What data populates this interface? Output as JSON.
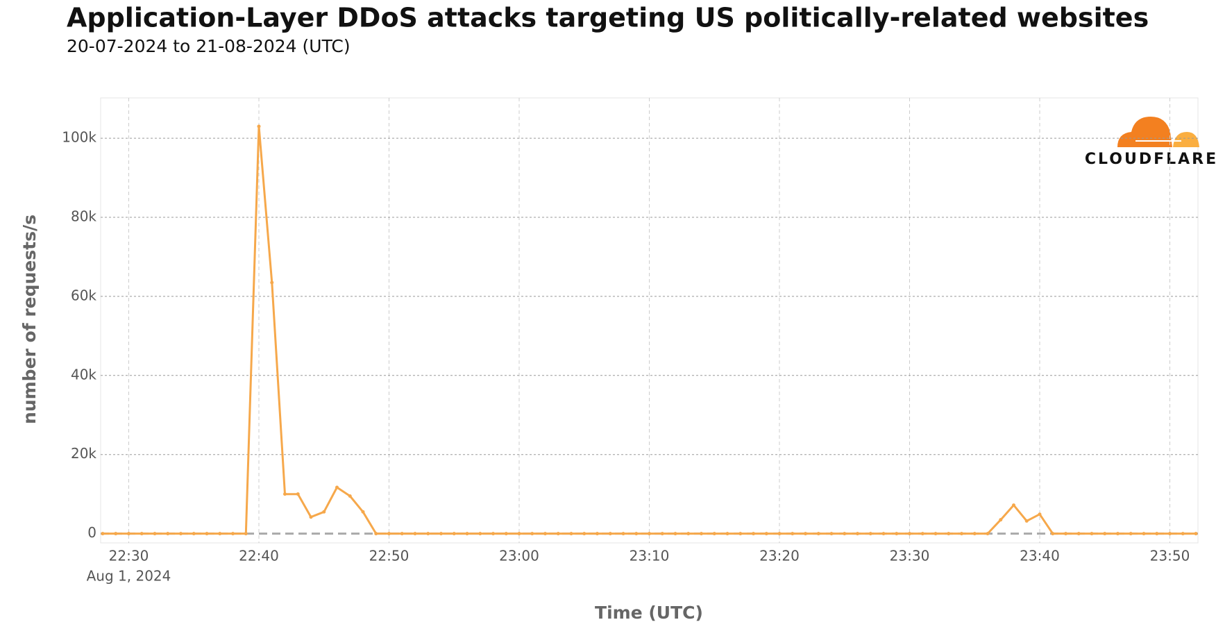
{
  "chart_data": {
    "type": "line",
    "title": "Application-Layer DDoS attacks targeting US politically-related websites",
    "subtitle": "20-07-2024 to 21-08-2024 (UTC)",
    "x_label": "Time (UTC)",
    "y_label": "number of requests/s",
    "date_label": "Aug 1, 2024",
    "logo": "CLOUDFLARE",
    "x": [
      "22:28",
      "22:29",
      "22:30",
      "22:31",
      "22:32",
      "22:33",
      "22:34",
      "22:35",
      "22:36",
      "22:37",
      "22:38",
      "22:39",
      "22:40",
      "22:41",
      "22:42",
      "22:43",
      "22:44",
      "22:45",
      "22:46",
      "22:47",
      "22:48",
      "22:49",
      "22:50",
      "22:51",
      "22:52",
      "22:53",
      "22:54",
      "22:55",
      "22:56",
      "22:57",
      "22:58",
      "22:59",
      "23:00",
      "23:01",
      "23:02",
      "23:03",
      "23:04",
      "23:05",
      "23:06",
      "23:07",
      "23:08",
      "23:09",
      "23:10",
      "23:11",
      "23:12",
      "23:13",
      "23:14",
      "23:15",
      "23:16",
      "23:17",
      "23:18",
      "23:19",
      "23:20",
      "23:21",
      "23:22",
      "23:23",
      "23:24",
      "23:25",
      "23:26",
      "23:27",
      "23:28",
      "23:29",
      "23:30",
      "23:31",
      "23:32",
      "23:33",
      "23:34",
      "23:35",
      "23:36",
      "23:37",
      "23:38",
      "23:39",
      "23:40",
      "23:41",
      "23:42",
      "23:43",
      "23:44",
      "23:45",
      "23:46",
      "23:47",
      "23:48",
      "23:49",
      "23:50",
      "23:51",
      "23:52"
    ],
    "series": [
      {
        "color": "#f6a84b",
        "values": [
          0,
          0,
          0,
          0,
          0,
          0,
          0,
          0,
          0,
          0,
          0,
          0,
          103000,
          63500,
          10000,
          10000,
          4200,
          5500,
          11700,
          9500,
          5500,
          0,
          0,
          0,
          0,
          0,
          0,
          0,
          0,
          0,
          0,
          0,
          0,
          0,
          0,
          0,
          0,
          0,
          0,
          0,
          0,
          0,
          0,
          0,
          0,
          0,
          0,
          0,
          0,
          0,
          0,
          0,
          0,
          0,
          0,
          0,
          0,
          0,
          0,
          0,
          0,
          0,
          0,
          0,
          0,
          0,
          0,
          0,
          0,
          3500,
          7200,
          3200,
          4900,
          0,
          0,
          0,
          0,
          0,
          0,
          0,
          0,
          0,
          0,
          0,
          0
        ]
      }
    ],
    "xlim": [
      "22:28",
      "23:52"
    ],
    "xticks": [
      "22:30",
      "22:40",
      "22:50",
      "23:00",
      "23:10",
      "23:20",
      "23:30",
      "23:40",
      "23:50"
    ],
    "ylim": [
      -2350,
      110200
    ],
    "yticks": [
      0,
      {
        "value": 20000,
        "label": "20k"
      },
      {
        "value": 40000,
        "label": "40k"
      },
      {
        "value": 60000,
        "label": "60k"
      },
      {
        "value": 80000,
        "label": "80k"
      },
      {
        "value": 100000,
        "label": "100k"
      }
    ],
    "grid": true,
    "baseline_color": "#aaaaaa"
  }
}
